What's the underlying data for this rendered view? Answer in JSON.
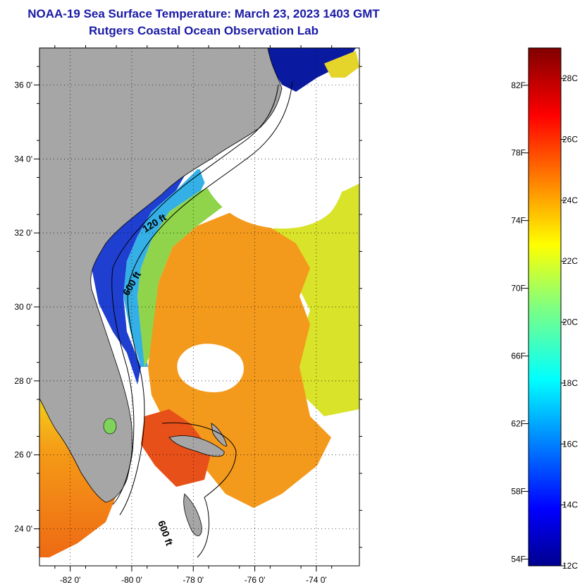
{
  "title": {
    "line1": "NOAA-19 Sea Surface Temperature:  March 23, 2023 1403 GMT",
    "line2": "Rutgers Coastal Ocean Observation Lab"
  },
  "map": {
    "lat_labels": [
      "36 0'",
      "34 0'",
      "32 0'",
      "30 0'",
      "28 0'",
      "26 0'",
      "24 0'"
    ],
    "lon_labels": [
      "-82 0'",
      "-80 0'",
      "-78 0'",
      "-76 0'",
      "-74 0'"
    ],
    "lat_range": [
      23.0,
      37.0
    ],
    "lon_range": [
      -83.0,
      -72.6
    ],
    "isobaths": [
      "120 ft",
      "600 ft",
      "600 ft"
    ],
    "colors": {
      "land": "#a6a6a6",
      "cloud_no_data": "#ffffff"
    }
  },
  "colorbar": {
    "fahrenheit_labels": [
      "82F",
      "78F",
      "74F",
      "70F",
      "66F",
      "62F",
      "58F",
      "54F"
    ],
    "celsius_labels": [
      "28C",
      "26C",
      "24C",
      "22C",
      "20C",
      "18C",
      "16C",
      "14C",
      "12C"
    ],
    "range_celsius": [
      12,
      29
    ],
    "colormap": "jet"
  }
}
